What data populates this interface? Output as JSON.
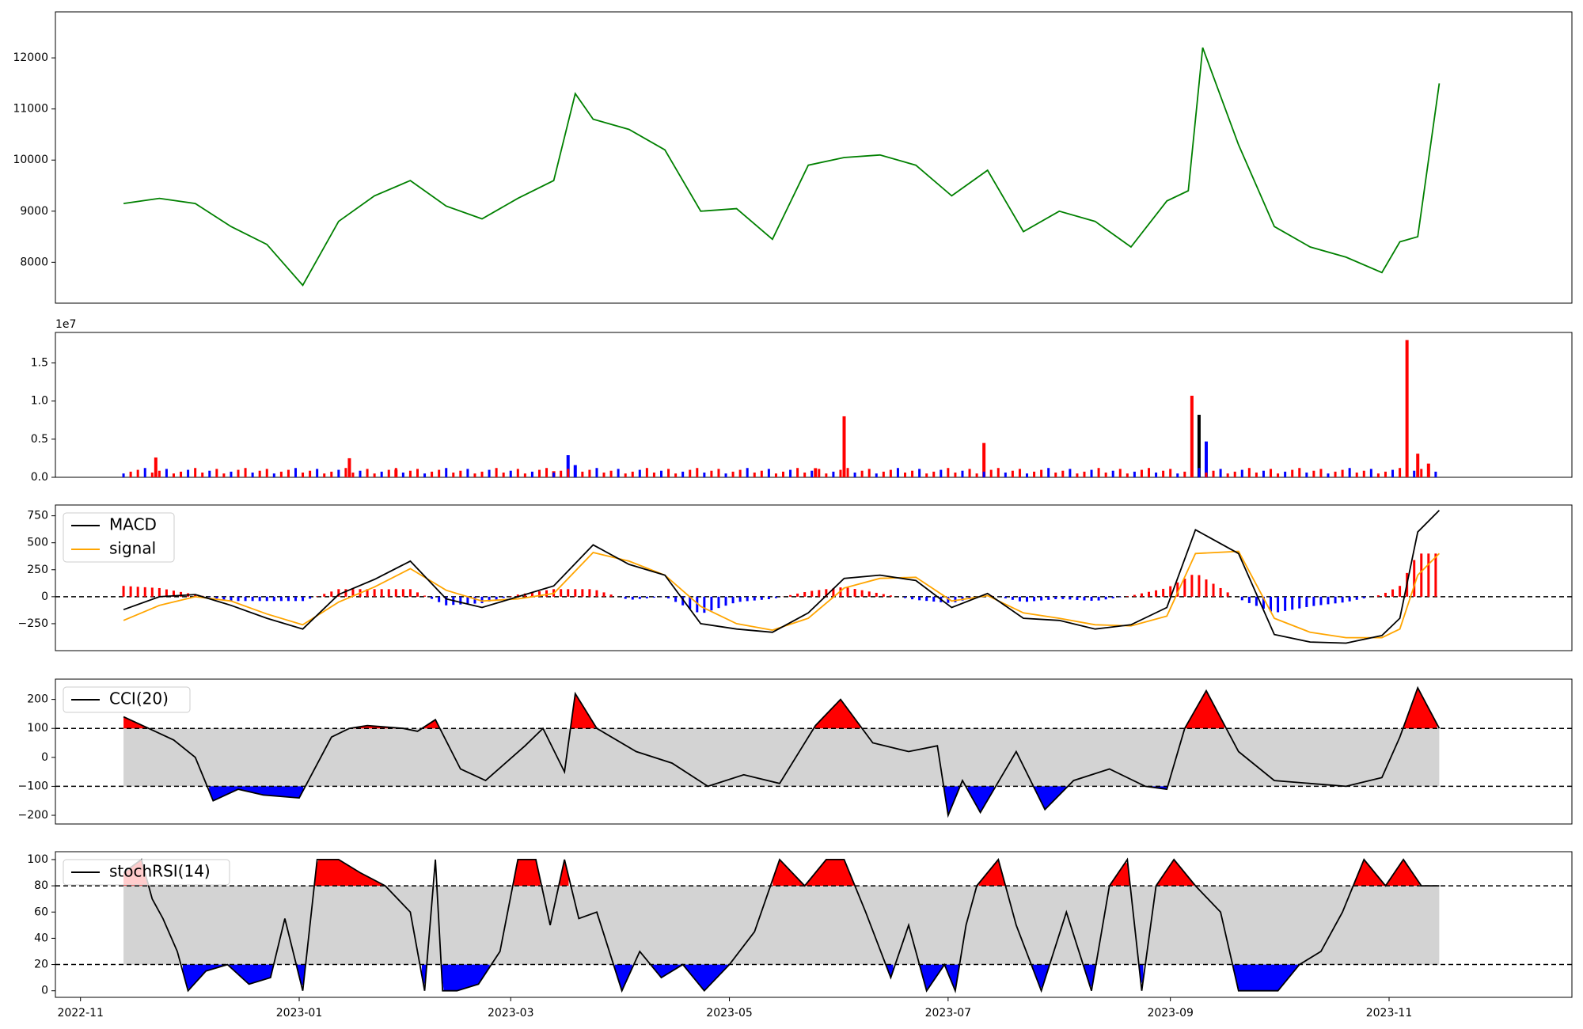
{
  "chart_data": [
    {
      "type": "line",
      "panel": "price",
      "y_ticks": [
        8000,
        9000,
        10000,
        11000,
        12000
      ],
      "ylim": [
        7200,
        12900
      ],
      "colors": {
        "line": "#008000"
      },
      "x": [
        "2022-11-13",
        "2022-11-23",
        "2022-12-03",
        "2022-12-13",
        "2022-12-23",
        "2023-01-02",
        "2023-01-12",
        "2023-01-22",
        "2023-02-01",
        "2023-02-11",
        "2023-02-21",
        "2023-03-03",
        "2023-03-13",
        "2023-03-19",
        "2023-03-24",
        "2023-04-03",
        "2023-04-13",
        "2023-04-23",
        "2023-05-03",
        "2023-05-13",
        "2023-05-23",
        "2023-06-02",
        "2023-06-12",
        "2023-06-22",
        "2023-07-02",
        "2023-07-12",
        "2023-07-22",
        "2023-08-01",
        "2023-08-11",
        "2023-08-21",
        "2023-08-31",
        "2023-09-06",
        "2023-09-10",
        "2023-09-20",
        "2023-09-30",
        "2023-10-10",
        "2023-10-20",
        "2023-10-30",
        "2023-11-04",
        "2023-11-09",
        "2023-11-15"
      ],
      "values": [
        9150,
        9250,
        9150,
        8700,
        8350,
        7550,
        8800,
        9300,
        9600,
        9100,
        8850,
        9250,
        9600,
        11300,
        10800,
        10600,
        10200,
        9000,
        9050,
        8450,
        9900,
        10050,
        10100,
        9900,
        9300,
        9800,
        8600,
        9000,
        8800,
        8300,
        9200,
        9400,
        12200,
        10300,
        8700,
        8300,
        8100,
        7800,
        8400,
        8500,
        11500
      ]
    },
    {
      "type": "bar",
      "panel": "volume",
      "y_ticks": [
        0.0,
        0.5,
        1.0,
        1.5
      ],
      "y_tick_labels": [
        "0.0",
        "0.5",
        "1.0",
        "1.5"
      ],
      "y_offset_label": "1e7",
      "ylim": [
        0,
        19000000
      ],
      "colors": {
        "up": "#ff0000",
        "down": "#0000ff",
        "neutral": "#000000"
      },
      "bars": [
        {
          "x": "2022-11-22",
          "value": 2600000,
          "color": "up"
        },
        {
          "x": "2023-01-15",
          "value": 2500000,
          "color": "up"
        },
        {
          "x": "2023-01-28",
          "value": 1000000,
          "color": "up"
        },
        {
          "x": "2023-03-13",
          "value": 800000,
          "color": "up"
        },
        {
          "x": "2023-03-17",
          "value": 2900000,
          "color": "down"
        },
        {
          "x": "2023-03-19",
          "value": 1600000,
          "color": "down"
        },
        {
          "x": "2023-05-25",
          "value": 1200000,
          "color": "up"
        },
        {
          "x": "2023-06-02",
          "value": 8000000,
          "color": "up"
        },
        {
          "x": "2023-07-11",
          "value": 4500000,
          "color": "up"
        },
        {
          "x": "2023-09-07",
          "value": 10700000,
          "color": "up"
        },
        {
          "x": "2023-09-09",
          "value": 8200000,
          "color": "neutral"
        },
        {
          "x": "2023-09-11",
          "value": 4700000,
          "color": "down"
        },
        {
          "x": "2023-11-06",
          "value": 18000000,
          "color": "up"
        },
        {
          "x": "2023-11-09",
          "value": 3100000,
          "color": "up"
        },
        {
          "x": "2023-11-12",
          "value": 1800000,
          "color": "up"
        }
      ]
    },
    {
      "type": "line",
      "panel": "macd",
      "y_ticks": [
        -250,
        0,
        250,
        500,
        750
      ],
      "ylim": [
        -500,
        850
      ],
      "legend": [
        "MACD",
        "signal"
      ],
      "legend_position": "top-left",
      "colors": {
        "macd": "#000000",
        "signal": "#ffa500",
        "hist_pos": "#ff0000",
        "hist_neg": "#0000ff"
      },
      "macd": {
        "x": [
          "2022-11-13",
          "2022-11-23",
          "2022-12-03",
          "2022-12-13",
          "2022-12-23",
          "2023-01-02",
          "2023-01-12",
          "2023-01-22",
          "2023-02-01",
          "2023-02-11",
          "2023-02-21",
          "2023-03-03",
          "2023-03-13",
          "2023-03-24",
          "2023-04-03",
          "2023-04-13",
          "2023-04-23",
          "2023-05-03",
          "2023-05-13",
          "2023-05-23",
          "2023-06-02",
          "2023-06-12",
          "2023-06-22",
          "2023-07-02",
          "2023-07-12",
          "2023-07-22",
          "2023-08-01",
          "2023-08-11",
          "2023-08-21",
          "2023-08-31",
          "2023-09-08",
          "2023-09-20",
          "2023-09-30",
          "2023-10-10",
          "2023-10-20",
          "2023-10-30",
          "2023-11-04",
          "2023-11-09",
          "2023-11-15"
        ],
        "values": [
          -120,
          0,
          20,
          -80,
          -200,
          -300,
          20,
          160,
          330,
          -20,
          -100,
          0,
          100,
          480,
          300,
          200,
          -250,
          -300,
          -330,
          -150,
          170,
          200,
          150,
          -100,
          30,
          -200,
          -220,
          -300,
          -260,
          -100,
          620,
          400,
          -350,
          -420,
          -430,
          -360,
          -200,
          600,
          800
        ]
      },
      "signal": {
        "x": [
          "2022-11-13",
          "2022-11-23",
          "2022-12-03",
          "2022-12-13",
          "2022-12-23",
          "2023-01-02",
          "2023-01-12",
          "2023-01-22",
          "2023-02-01",
          "2023-02-11",
          "2023-02-21",
          "2023-03-03",
          "2023-03-13",
          "2023-03-24",
          "2023-04-03",
          "2023-04-13",
          "2023-04-23",
          "2023-05-03",
          "2023-05-13",
          "2023-05-23",
          "2023-06-02",
          "2023-06-12",
          "2023-06-22",
          "2023-07-02",
          "2023-07-12",
          "2023-07-22",
          "2023-08-01",
          "2023-08-11",
          "2023-08-21",
          "2023-08-31",
          "2023-09-08",
          "2023-09-20",
          "2023-09-30",
          "2023-10-10",
          "2023-10-20",
          "2023-10-30",
          "2023-11-04",
          "2023-11-09",
          "2023-11-15"
        ],
        "values": [
          -220,
          -80,
          0,
          -40,
          -160,
          -260,
          -50,
          90,
          260,
          60,
          -40,
          -20,
          30,
          410,
          330,
          200,
          -90,
          -250,
          -310,
          -200,
          80,
          170,
          180,
          -40,
          10,
          -150,
          -200,
          -260,
          -270,
          -180,
          400,
          420,
          -200,
          -330,
          -380,
          -380,
          -300,
          200,
          400
        ]
      },
      "histogram": {
        "x": [
          "2022-11-13",
          "2022-11-23",
          "2022-12-03",
          "2022-12-13",
          "2022-12-23",
          "2023-01-02",
          "2023-01-12",
          "2023-01-22",
          "2023-02-01",
          "2023-02-11",
          "2023-02-21",
          "2023-03-03",
          "2023-03-13",
          "2023-03-24",
          "2023-04-03",
          "2023-04-13",
          "2023-04-23",
          "2023-05-03",
          "2023-05-13",
          "2023-05-23",
          "2023-06-02",
          "2023-06-12",
          "2023-06-22",
          "2023-07-02",
          "2023-07-12",
          "2023-07-22",
          "2023-08-01",
          "2023-08-11",
          "2023-08-21",
          "2023-08-31",
          "2023-09-08",
          "2023-09-20",
          "2023-09-30",
          "2023-10-10",
          "2023-10-20",
          "2023-10-30",
          "2023-11-04",
          "2023-11-09",
          "2023-11-15"
        ],
        "values": [
          100,
          80,
          20,
          -40,
          -40,
          -40,
          70,
          70,
          70,
          -80,
          -60,
          20,
          70,
          70,
          -30,
          0,
          -160,
          -50,
          -20,
          50,
          90,
          30,
          -30,
          -60,
          20,
          -50,
          -20,
          -40,
          10,
          80,
          220,
          -20,
          -150,
          -90,
          -50,
          20,
          100,
          400,
          400
        ]
      }
    },
    {
      "type": "line",
      "panel": "cci",
      "y_ticks": [
        -200,
        -100,
        0,
        100,
        200
      ],
      "ylim": [
        -230,
        270
      ],
      "legend": [
        "CCI(20)"
      ],
      "legend_position": "top-left",
      "reference_lines": [
        100,
        -100
      ],
      "colors": {
        "line": "#000000",
        "above": "#ff0000",
        "below": "#0000ff",
        "band": "#d3d3d3"
      },
      "x": [
        "2022-11-13",
        "2022-11-20",
        "2022-11-27",
        "2022-12-03",
        "2022-12-08",
        "2022-12-15",
        "2022-12-22",
        "2023-01-01",
        "2023-01-10",
        "2023-01-15",
        "2023-01-20",
        "2023-01-30",
        "2023-02-03",
        "2023-02-08",
        "2023-02-15",
        "2023-02-22",
        "2023-03-05",
        "2023-03-10",
        "2023-03-16",
        "2023-03-19",
        "2023-03-25",
        "2023-04-05",
        "2023-04-15",
        "2023-04-25",
        "2023-05-05",
        "2023-05-15",
        "2023-05-25",
        "2023-06-01",
        "2023-06-10",
        "2023-06-20",
        "2023-06-28",
        "2023-07-01",
        "2023-07-05",
        "2023-07-10",
        "2023-07-20",
        "2023-07-28",
        "2023-08-05",
        "2023-08-15",
        "2023-08-25",
        "2023-08-31",
        "2023-09-05",
        "2023-09-11",
        "2023-09-20",
        "2023-09-30",
        "2023-10-10",
        "2023-10-20",
        "2023-10-30",
        "2023-11-04",
        "2023-11-09",
        "2023-11-15"
      ],
      "values": [
        140,
        100,
        60,
        0,
        -150,
        -110,
        -130,
        -140,
        70,
        100,
        110,
        100,
        90,
        130,
        -40,
        -80,
        40,
        100,
        -50,
        220,
        100,
        20,
        -20,
        -100,
        -60,
        -90,
        110,
        200,
        50,
        20,
        40,
        -200,
        -80,
        -190,
        20,
        -180,
        -80,
        -40,
        -100,
        -110,
        100,
        230,
        20,
        -80,
        -90,
        -100,
        -70,
        70,
        240,
        100
      ]
    },
    {
      "type": "line",
      "panel": "stochrsi",
      "y_ticks": [
        0,
        20,
        40,
        60,
        80,
        100
      ],
      "ylim": [
        -5,
        106
      ],
      "legend": [
        "stochRSI(14)"
      ],
      "legend_position": "top-left",
      "reference_lines": [
        80,
        20
      ],
      "colors": {
        "line": "#000000",
        "above": "#ff0000",
        "below": "#0000ff",
        "band": "#d3d3d3"
      },
      "x_ticks": [
        "2022-11",
        "2023-01",
        "2023-03",
        "2023-05",
        "2023-07",
        "2023-09",
        "2023-11"
      ],
      "x": [
        "2022-11-13",
        "2022-11-18",
        "2022-11-21",
        "2022-11-24",
        "2022-11-28",
        "2022-12-01",
        "2022-12-06",
        "2022-12-12",
        "2022-12-18",
        "2022-12-24",
        "2022-12-28",
        "2023-01-02",
        "2023-01-06",
        "2023-01-12",
        "2023-01-18",
        "2023-01-25",
        "2023-02-01",
        "2023-02-05",
        "2023-02-08",
        "2023-02-10",
        "2023-02-14",
        "2023-02-20",
        "2023-02-26",
        "2023-03-03",
        "2023-03-08",
        "2023-03-12",
        "2023-03-16",
        "2023-03-20",
        "2023-03-25",
        "2023-04-01",
        "2023-04-06",
        "2023-04-12",
        "2023-04-18",
        "2023-04-24",
        "2023-05-01",
        "2023-05-08",
        "2023-05-15",
        "2023-05-22",
        "2023-05-28",
        "2023-06-02",
        "2023-06-08",
        "2023-06-15",
        "2023-06-20",
        "2023-06-25",
        "2023-06-30",
        "2023-07-03",
        "2023-07-06",
        "2023-07-09",
        "2023-07-15",
        "2023-07-20",
        "2023-07-27",
        "2023-08-03",
        "2023-08-10",
        "2023-08-15",
        "2023-08-20",
        "2023-08-24",
        "2023-08-28",
        "2023-09-02",
        "2023-09-08",
        "2023-09-15",
        "2023-09-20",
        "2023-09-25",
        "2023-10-01",
        "2023-10-07",
        "2023-10-13",
        "2023-10-19",
        "2023-10-25",
        "2023-10-31",
        "2023-11-05",
        "2023-11-10",
        "2023-11-15"
      ],
      "values": [
        90,
        100,
        70,
        55,
        30,
        0,
        15,
        20,
        5,
        10,
        55,
        0,
        100,
        100,
        90,
        80,
        60,
        0,
        100,
        0,
        0,
        5,
        30,
        100,
        100,
        50,
        100,
        55,
        60,
        0,
        30,
        10,
        20,
        0,
        20,
        45,
        100,
        80,
        100,
        100,
        60,
        10,
        50,
        0,
        20,
        0,
        50,
        80,
        100,
        50,
        0,
        60,
        0,
        80,
        100,
        0,
        80,
        100,
        80,
        60,
        0,
        0,
        0,
        20,
        30,
        60,
        100,
        80,
        100,
        80,
        80
      ]
    }
  ]
}
